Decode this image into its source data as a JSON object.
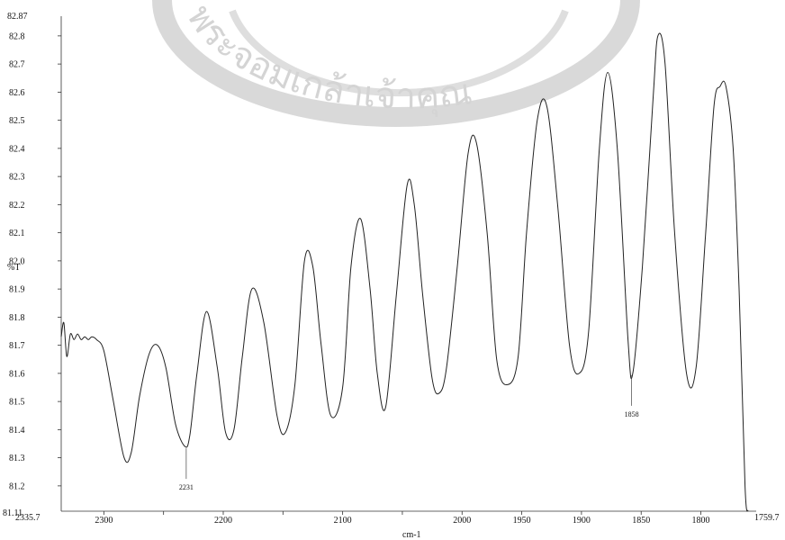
{
  "chart_data": {
    "type": "line",
    "title": "",
    "xlabel": "cm-1",
    "ylabel": "%T",
    "xlim": [
      2335.7,
      1759.7
    ],
    "ylim": [
      81.11,
      82.87
    ],
    "x_reversed": true,
    "grid": false,
    "legend": "none",
    "line_color": "#222222",
    "x_ticks": [
      2300,
      2250,
      2200,
      2150,
      2100,
      2050,
      2000,
      1950,
      1900,
      1850,
      1800
    ],
    "x_tick_labels": [
      "2300",
      "",
      "2200",
      "",
      "2100",
      "",
      "2000",
      "1950",
      "1900",
      "1850",
      "1800"
    ],
    "x_end_labels": [
      "2335.7",
      "1759.7"
    ],
    "y_ticks": [
      81.2,
      81.3,
      81.4,
      81.5,
      81.6,
      81.7,
      81.8,
      81.9,
      82.0,
      82.1,
      82.2,
      82.3,
      82.4,
      82.5,
      82.6,
      82.7,
      82.8
    ],
    "y_tick_labels": [
      "81.2",
      "81.3",
      "81.4",
      "81.5",
      "81.6",
      "81.7",
      "81.8",
      "81.9",
      "82.0",
      "82.1",
      "82.2",
      "82.3",
      "82.4",
      "82.5",
      "82.6",
      "82.7",
      "82.8"
    ],
    "y_end_labels": [
      "81.11",
      "82.87"
    ],
    "series": [
      {
        "x": [
          2335.7,
          2333.5,
          2331,
          2328,
          2325,
          2322,
          2319,
          2316,
          2313,
          2310,
          2306,
          2300,
          2292,
          2283,
          2277,
          2270,
          2262,
          2255,
          2248,
          2240,
          2232,
          2228,
          2222,
          2214,
          2205,
          2198,
          2191,
          2184,
          2176,
          2166,
          2155,
          2148,
          2140,
          2132,
          2125,
          2118,
          2110,
          2100,
          2093,
          2085,
          2077,
          2071,
          2064,
          2055,
          2046,
          2040,
          2033,
          2025,
          2019,
          2013,
          2004,
          1995,
          1988,
          1979,
          1971,
          1962,
          1953,
          1946,
          1937,
          1929,
          1920,
          1910,
          1902,
          1894,
          1885,
          1878,
          1870,
          1861,
          1857,
          1849,
          1840,
          1836,
          1830,
          1822,
          1812,
          1804,
          1796,
          1789,
          1784,
          1779,
          1773,
          1768,
          1763,
          1760.5
        ],
        "y": [
          81.73,
          81.78,
          81.66,
          81.74,
          81.72,
          81.74,
          81.72,
          81.73,
          81.72,
          81.73,
          81.72,
          81.68,
          81.5,
          81.3,
          81.32,
          81.52,
          81.67,
          81.7,
          81.62,
          81.42,
          81.34,
          81.38,
          81.6,
          81.82,
          81.62,
          81.39,
          81.4,
          81.66,
          81.9,
          81.78,
          81.45,
          81.39,
          81.56,
          82.0,
          81.98,
          81.7,
          81.45,
          81.55,
          81.98,
          82.15,
          81.9,
          81.6,
          81.48,
          81.88,
          82.27,
          82.2,
          81.88,
          81.58,
          81.53,
          81.62,
          81.98,
          82.38,
          82.42,
          82.1,
          81.65,
          81.56,
          81.66,
          82.1,
          82.5,
          82.55,
          82.2,
          81.7,
          81.6,
          81.75,
          82.4,
          82.67,
          82.4,
          81.72,
          81.6,
          81.98,
          82.58,
          82.8,
          82.7,
          82.1,
          81.6,
          81.62,
          82.1,
          82.55,
          82.62,
          82.62,
          82.4,
          81.9,
          81.2,
          81.11
        ]
      }
    ],
    "annotations": [
      {
        "x": 2231,
        "y": 81.34,
        "text": "2231"
      },
      {
        "x": 1858,
        "y": 81.6,
        "text": "1858"
      }
    ]
  },
  "watermark": {
    "text": "พระจอมเกล้าเจ้าคุณ",
    "color": "#d4d4d4"
  }
}
